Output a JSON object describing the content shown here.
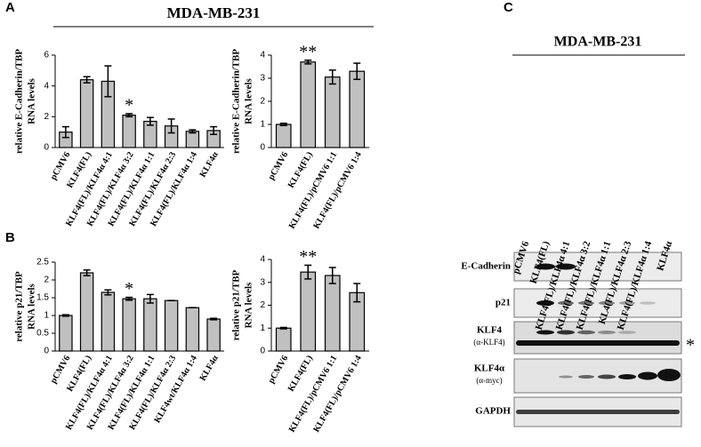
{
  "header": {
    "title": "MDA-MB-231"
  },
  "panel_labels": [
    "A",
    "B",
    "C"
  ],
  "chart_data": [
    {
      "type": "bar",
      "ylabel": [
        "relative E-Cadherin/TBP",
        "RNA levels"
      ],
      "categories": [
        "pCMV6",
        "KLF4(FL)",
        "KLF4(FL)/KLF4α 4:1",
        "KLF4(FL)/KLF4α 3:2",
        "KLF4(FL)/KLF4α 1:1",
        "KLF4(FL)/KLF4α 2:3",
        "KLF4(FL)/KLF4α 1:4",
        "KLF4α"
      ],
      "values": [
        1.0,
        4.4,
        4.3,
        2.1,
        1.7,
        1.4,
        1.05,
        1.1
      ],
      "errors": [
        0.35,
        0.2,
        1.0,
        0.1,
        0.25,
        0.45,
        0.1,
        0.25
      ],
      "color": "#c0c0c0",
      "ylim": [
        0,
        6
      ],
      "yticks": [
        0,
        2,
        4,
        6
      ],
      "annotations": [
        {
          "text": "*",
          "category": "KLF4(FL)/KLF4α 3:2"
        }
      ]
    },
    {
      "type": "bar",
      "ylabel": [
        "relative E-Cadherin/TBP",
        "RNA levels"
      ],
      "categories": [
        "pCMV6",
        "KLF4(FL)",
        "KLF4(FL)/pCMV6 1:1",
        "KLF4(FL)/pCMV6 1:4"
      ],
      "values": [
        1.0,
        3.7,
        3.05,
        3.3
      ],
      "errors": [
        0.05,
        0.08,
        0.3,
        0.35
      ],
      "color": "#c0c0c0",
      "ylim": [
        0,
        4
      ],
      "yticks": [
        0,
        1,
        2,
        3,
        4
      ],
      "annotations": [
        {
          "text": "**",
          "category": "KLF4(FL)"
        }
      ]
    },
    {
      "type": "bar",
      "ylabel": [
        "relative p21/TBP",
        "RNA levels"
      ],
      "categories": [
        "pCMV6",
        "KLF4(FL)",
        "KLF4(FL)/KLF4α 4:1",
        "KLF4(FL)/KLF4α 3:2",
        "KLF4(FL)/KLF4α 1:1",
        "KLF4(FL)/KLF4α 2:3",
        "KLF4wt/KLF4α 1:4",
        "KLF4α"
      ],
      "values": [
        1.0,
        2.2,
        1.65,
        1.47,
        1.47,
        1.42,
        1.22,
        0.9
      ],
      "errors": [
        0.02,
        0.08,
        0.07,
        0.04,
        0.12,
        0,
        0,
        0.02
      ],
      "color": "#c0c0c0",
      "ylim": [
        0,
        2.5
      ],
      "yticks": [
        0,
        0.5,
        1,
        1.5,
        2,
        2.5
      ],
      "annotations": [
        {
          "text": "*",
          "category": "KLF4(FL)/KLF4α 3:2"
        }
      ]
    },
    {
      "type": "bar",
      "ylabel": [
        "relative p21/TBP",
        "RNA levels"
      ],
      "categories": [
        "pCMV6",
        "KLF4(FL)",
        "KLF4(FL)/pCMV6 1:1",
        "KLF4(FL)/pCMV6 1:4"
      ],
      "values": [
        1.0,
        3.45,
        3.3,
        2.55
      ],
      "errors": [
        0.03,
        0.3,
        0.35,
        0.4
      ],
      "color": "#c0c0c0",
      "ylim": [
        0,
        4
      ],
      "yticks": [
        0,
        1,
        2,
        3,
        4
      ],
      "annotations": [
        {
          "text": "**",
          "category": "KLF4(FL)"
        }
      ]
    }
  ],
  "blot": {
    "title": "MDA-MB-231",
    "lanes": [
      "pCMV6",
      "KLF4(FL)",
      "KLF4(FL)/KLF4α 4:1",
      "KLF4(FL)/KLF4α 3:2",
      "KLF4(FL)/KLF4α 1:1",
      "KL4(FL)/KLF4α 2:3",
      "KLF4(FL)/KLF4α 1:4",
      "KLF4α"
    ],
    "rows": [
      {
        "label": "E-Cadherin"
      },
      {
        "label": "p21"
      },
      {
        "label": "KLF4",
        "antibody": "(α-KLF4)"
      },
      {
        "label": "KLF4α",
        "antibody": "(α-myc)"
      },
      {
        "label": "GAPDH"
      }
    ],
    "marker": "*"
  }
}
